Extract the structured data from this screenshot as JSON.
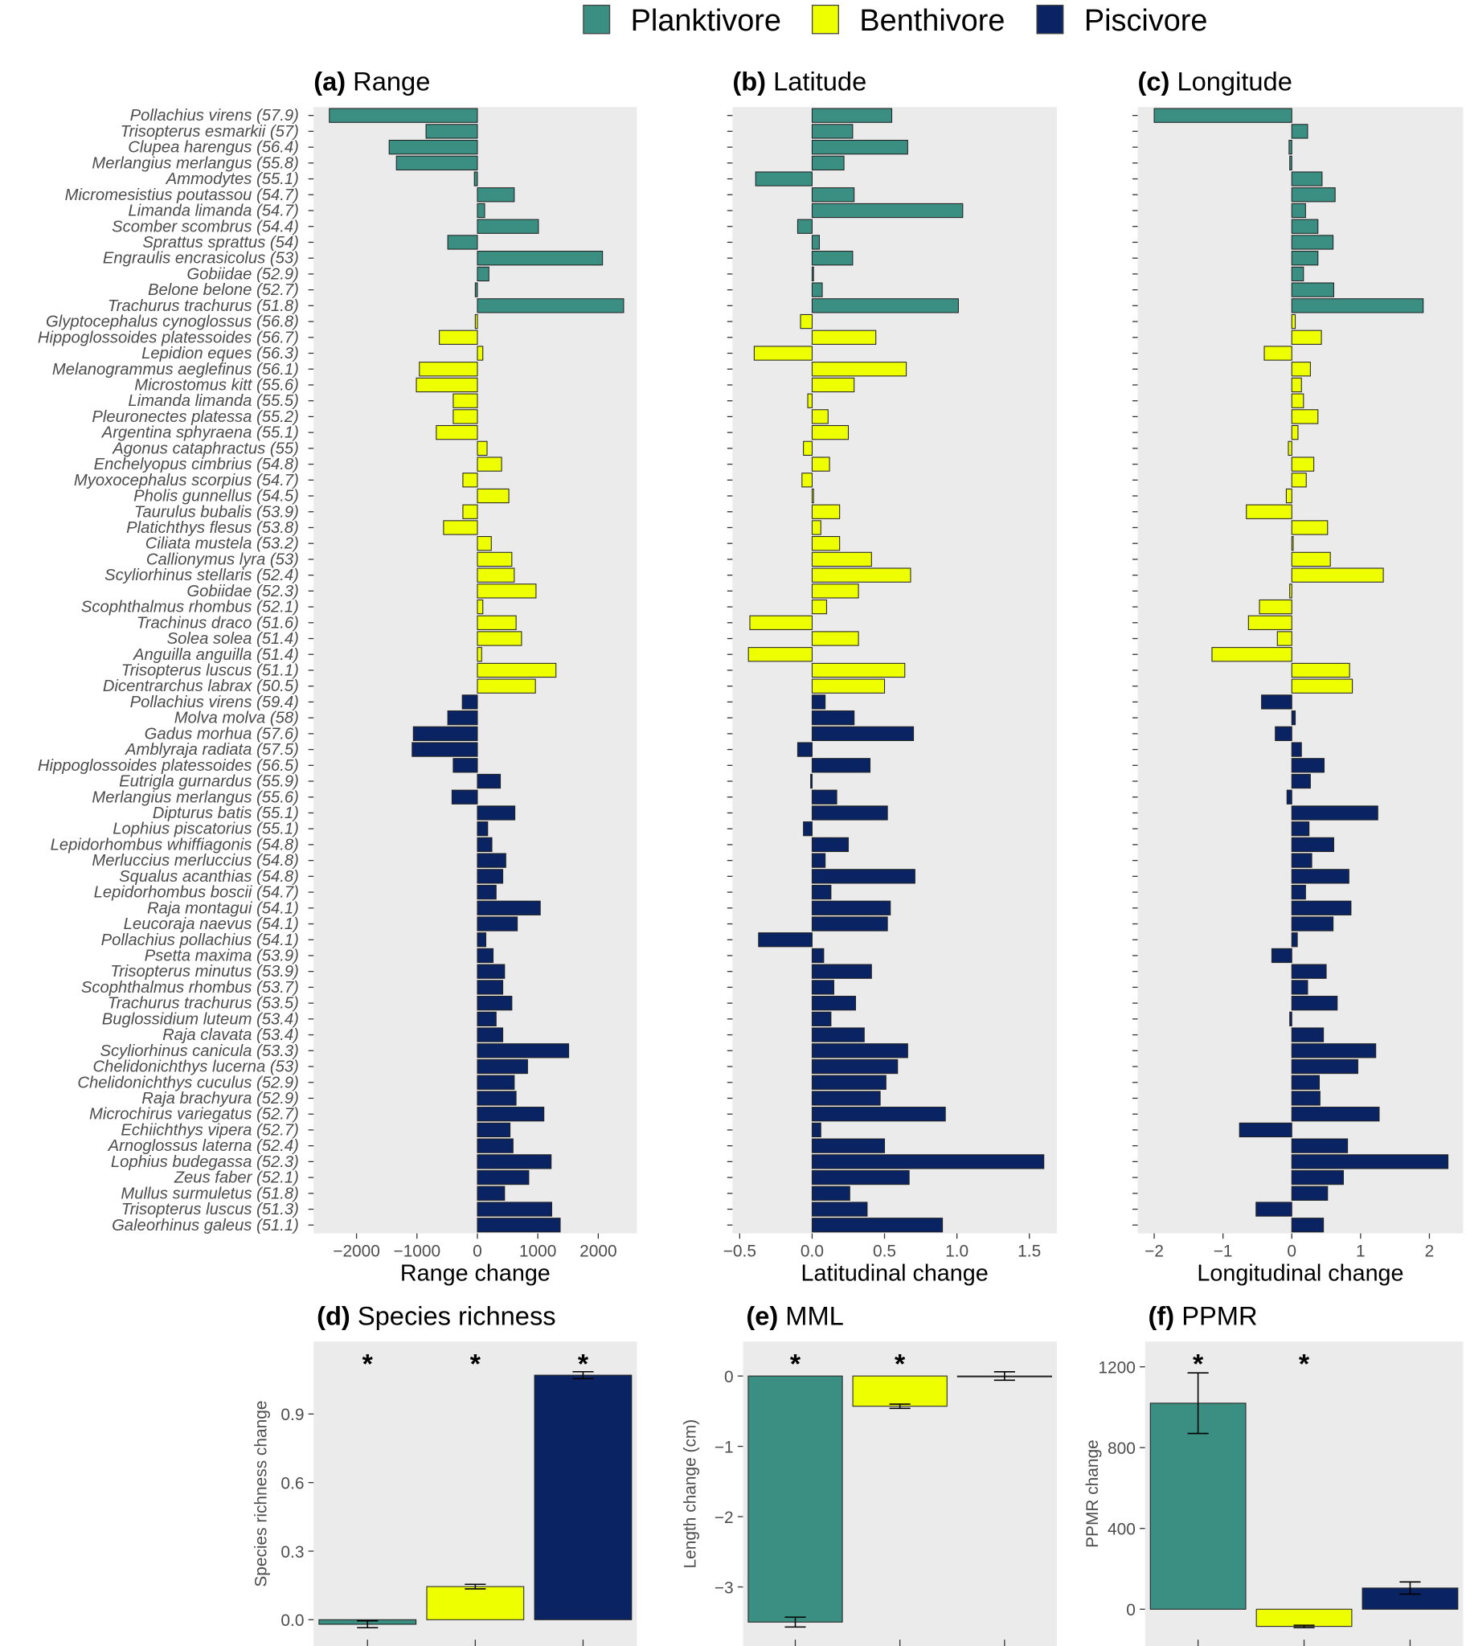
{
  "chart_data": {
    "type": "bar",
    "colors": {
      "Planktivore": "#3A8E82",
      "Benthivore": "#EEFF00",
      "Piscivore": "#0A2463",
      "panel_bg": "#EBEBEB"
    },
    "legend": {
      "position": "top",
      "entries": [
        "Planktivore",
        "Benthivore",
        "Piscivore"
      ]
    },
    "species": [
      [
        "Pollachius virens (57.9)",
        "Planktivore"
      ],
      [
        "Trisopterus esmarkii (57)",
        "Planktivore"
      ],
      [
        "Clupea harengus (56.4)",
        "Planktivore"
      ],
      [
        "Merlangius merlangus (55.8)",
        "Planktivore"
      ],
      [
        "Ammodytes (55.1)",
        "Planktivore"
      ],
      [
        "Micromesistius poutassou (54.7)",
        "Planktivore"
      ],
      [
        "Limanda limanda (54.7)",
        "Planktivore"
      ],
      [
        "Scomber scombrus (54.4)",
        "Planktivore"
      ],
      [
        "Sprattus sprattus (54)",
        "Planktivore"
      ],
      [
        "Engraulis encrasicolus (53)",
        "Planktivore"
      ],
      [
        "Gobiidae (52.9)",
        "Planktivore"
      ],
      [
        "Belone belone (52.7)",
        "Planktivore"
      ],
      [
        "Trachurus trachurus (51.8)",
        "Planktivore"
      ],
      [
        "Glyptocephalus cynoglossus (56.8)",
        "Benthivore"
      ],
      [
        "Hippoglossoides platessoides (56.7)",
        "Benthivore"
      ],
      [
        "Lepidion eques (56.3)",
        "Benthivore"
      ],
      [
        "Melanogrammus aeglefinus (56.1)",
        "Benthivore"
      ],
      [
        "Microstomus kitt (55.6)",
        "Benthivore"
      ],
      [
        "Limanda limanda (55.5)",
        "Benthivore"
      ],
      [
        "Pleuronectes platessa (55.2)",
        "Benthivore"
      ],
      [
        "Argentina sphyraena (55.1)",
        "Benthivore"
      ],
      [
        "Agonus cataphractus (55)",
        "Benthivore"
      ],
      [
        "Enchelyopus cimbrius (54.8)",
        "Benthivore"
      ],
      [
        "Myoxocephalus scorpius (54.7)",
        "Benthivore"
      ],
      [
        "Pholis gunnellus (54.5)",
        "Benthivore"
      ],
      [
        "Taurulus bubalis (53.9)",
        "Benthivore"
      ],
      [
        "Platichthys flesus (53.8)",
        "Benthivore"
      ],
      [
        "Ciliata mustela (53.2)",
        "Benthivore"
      ],
      [
        "Callionymus lyra (53)",
        "Benthivore"
      ],
      [
        "Scyliorhinus stellaris (52.4)",
        "Benthivore"
      ],
      [
        "Gobiidae (52.3)",
        "Benthivore"
      ],
      [
        "Scophthalmus rhombus (52.1)",
        "Benthivore"
      ],
      [
        "Trachinus draco (51.6)",
        "Benthivore"
      ],
      [
        "Solea solea (51.4)",
        "Benthivore"
      ],
      [
        "Anguilla anguilla (51.4)",
        "Benthivore"
      ],
      [
        "Trisopterus luscus (51.1)",
        "Benthivore"
      ],
      [
        "Dicentrarchus labrax (50.5)",
        "Benthivore"
      ],
      [
        "Pollachius virens (59.4)",
        "Piscivore"
      ],
      [
        "Molva molva (58)",
        "Piscivore"
      ],
      [
        "Gadus morhua (57.6)",
        "Piscivore"
      ],
      [
        "Amblyraja radiata (57.5)",
        "Piscivore"
      ],
      [
        "Hippoglossoides platessoides (56.5)",
        "Piscivore"
      ],
      [
        "Eutrigla gurnardus (55.9)",
        "Piscivore"
      ],
      [
        "Merlangius merlangus (55.6)",
        "Piscivore"
      ],
      [
        "Dipturus batis (55.1)",
        "Piscivore"
      ],
      [
        "Lophius piscatorius (55.1)",
        "Piscivore"
      ],
      [
        "Lepidorhombus whiffiagonis (54.8)",
        "Piscivore"
      ],
      [
        "Merluccius merluccius (54.8)",
        "Piscivore"
      ],
      [
        "Squalus acanthias (54.8)",
        "Piscivore"
      ],
      [
        "Lepidorhombus boscii (54.7)",
        "Piscivore"
      ],
      [
        "Raja montagui (54.1)",
        "Piscivore"
      ],
      [
        "Leucoraja naevus (54.1)",
        "Piscivore"
      ],
      [
        "Pollachius pollachius (54.1)",
        "Piscivore"
      ],
      [
        "Psetta maxima (53.9)",
        "Piscivore"
      ],
      [
        "Trisopterus minutus (53.9)",
        "Piscivore"
      ],
      [
        "Scophthalmus rhombus (53.7)",
        "Piscivore"
      ],
      [
        "Trachurus trachurus (53.5)",
        "Piscivore"
      ],
      [
        "Buglossidium luteum (53.4)",
        "Piscivore"
      ],
      [
        "Raja clavata (53.4)",
        "Piscivore"
      ],
      [
        "Scyliorhinus canicula (53.3)",
        "Piscivore"
      ],
      [
        "Chelidonichthys lucerna (53)",
        "Piscivore"
      ],
      [
        "Chelidonichthys cuculus (52.9)",
        "Piscivore"
      ],
      [
        "Raja brachyura (52.9)",
        "Piscivore"
      ],
      [
        "Microchirus variegatus (52.7)",
        "Piscivore"
      ],
      [
        "Echiichthys vipera (52.7)",
        "Piscivore"
      ],
      [
        "Arnoglossus laterna (52.4)",
        "Piscivore"
      ],
      [
        "Lophius budegassa (52.3)",
        "Piscivore"
      ],
      [
        "Zeus faber (52.1)",
        "Piscivore"
      ],
      [
        "Mullus surmuletus (51.8)",
        "Piscivore"
      ],
      [
        "Trisopterus luscus (51.3)",
        "Piscivore"
      ],
      [
        "Galeorhinus galeus (51.1)",
        "Piscivore"
      ]
    ],
    "panels": [
      {
        "tag": "(a)",
        "title": "Range",
        "xlabel": "Range change",
        "xlim": [
          -2710,
          2640
        ],
        "ticks": [
          -2000,
          -1000,
          0,
          1000,
          2000
        ],
        "tick_labels": [
          "-2000",
          "-1000",
          "0",
          "1000",
          "2000"
        ],
        "values": [
          -2450,
          -850,
          -1460,
          -1340,
          -50,
          610,
          120,
          1010,
          -490,
          2070,
          190,
          -35,
          2420,
          -35,
          -630,
          90,
          -960,
          -1010,
          -400,
          -400,
          -680,
          160,
          400,
          -240,
          520,
          -240,
          -560,
          230,
          570,
          610,
          970,
          90,
          640,
          730,
          70,
          1300,
          960,
          -250,
          -490,
          -1060,
          -1080,
          -400,
          380,
          -420,
          620,
          170,
          240,
          470,
          420,
          310,
          1040,
          660,
          140,
          260,
          450,
          420,
          570,
          310,
          420,
          1510,
          830,
          610,
          640,
          1100,
          540,
          590,
          1220,
          850,
          450,
          1230,
          1370
        ]
      },
      {
        "tag": "(b)",
        "title": "Latitude",
        "xlabel": "Latitudinal change",
        "xlim": [
          -0.55,
          1.69
        ],
        "ticks": [
          -0.5,
          0,
          0.5,
          1,
          1.5
        ],
        "tick_labels": [
          "-0.5",
          "0.0",
          "0.5",
          "1.0",
          "1.5"
        ],
        "values": [
          0.55,
          0.28,
          0.66,
          0.22,
          -0.39,
          0.29,
          1.04,
          -0.1,
          0.05,
          0.28,
          0.01,
          0.07,
          1.01,
          -0.08,
          0.44,
          -0.4,
          0.65,
          0.29,
          -0.03,
          0.11,
          0.25,
          -0.06,
          0.12,
          -0.07,
          0.01,
          0.19,
          0.06,
          0.19,
          0.41,
          0.68,
          0.32,
          0.1,
          -0.43,
          0.32,
          -0.44,
          0.64,
          0.5,
          0.09,
          0.29,
          0.7,
          -0.1,
          0.4,
          -0.01,
          0.17,
          0.52,
          -0.06,
          0.25,
          0.09,
          0.71,
          0.13,
          0.54,
          0.52,
          -0.37,
          0.08,
          0.41,
          0.15,
          0.3,
          0.13,
          0.36,
          0.66,
          0.59,
          0.51,
          0.47,
          0.92,
          0.06,
          0.5,
          1.6,
          0.67,
          0.26,
          0.38,
          0.9
        ]
      },
      {
        "tag": "(c)",
        "title": "Longitude",
        "xlabel": "Longitudinal change",
        "xlim": [
          -2.24,
          2.49
        ],
        "ticks": [
          -2,
          -1,
          0,
          1,
          2
        ],
        "tick_labels": [
          "-2",
          "-1",
          "0",
          "1",
          "2"
        ],
        "values": [
          -2.0,
          0.23,
          -0.04,
          -0.03,
          0.44,
          0.63,
          0.2,
          0.38,
          0.6,
          0.38,
          0.17,
          0.61,
          1.91,
          0.05,
          0.43,
          -0.4,
          0.27,
          0.14,
          0.17,
          0.38,
          0.09,
          -0.05,
          0.32,
          0.21,
          -0.08,
          -0.66,
          0.52,
          0.02,
          0.56,
          1.33,
          -0.03,
          -0.47,
          -0.63,
          -0.21,
          -1.16,
          0.84,
          0.88,
          -0.44,
          0.05,
          -0.24,
          0.14,
          0.47,
          0.27,
          -0.07,
          1.25,
          0.25,
          0.61,
          0.29,
          0.83,
          0.2,
          0.86,
          0.6,
          0.08,
          -0.29,
          0.5,
          0.23,
          0.66,
          -0.03,
          0.46,
          1.22,
          0.96,
          0.4,
          0.41,
          1.27,
          -0.76,
          0.81,
          2.27,
          0.75,
          0.52,
          -0.52,
          0.46
        ]
      }
    ],
    "summary": [
      {
        "tag": "(d)",
        "title": "Species richness",
        "ylabel": "Species richness change",
        "ylim": [
          -0.115,
          1.217
        ],
        "ticks": [
          0,
          0.3,
          0.6,
          0.9
        ],
        "tick_labels": [
          "0.0",
          "0.3",
          "0.6",
          "0.9"
        ],
        "values": [
          -0.02,
          0.145,
          1.07
        ],
        "errors": [
          0.015,
          0.01,
          0.015
        ],
        "significant": [
          true,
          true,
          true
        ],
        "marker": "*"
      },
      {
        "tag": "(e)",
        "title": "MML",
        "ylabel": "Length change (cm)",
        "ylim": [
          -3.84,
          0.49
        ],
        "ticks": [
          -3,
          -2,
          -1,
          0
        ],
        "tick_labels": [
          "-3",
          "-2",
          "-1",
          "0"
        ],
        "values": [
          -3.5,
          -0.43,
          0.0
        ],
        "errors": [
          0.07,
          0.03,
          0.06
        ],
        "significant": [
          true,
          true,
          false
        ],
        "marker": "*"
      },
      {
        "tag": "(f)",
        "title": "PPMR",
        "ylabel": "PPMR change",
        "ylim": [
          -182,
          1325
        ],
        "ticks": [
          0,
          400,
          800,
          1200
        ],
        "tick_labels": [
          "0",
          "400",
          "800",
          "1200"
        ],
        "values": [
          1020,
          -85,
          105
        ],
        "errors": [
          150,
          6,
          30
        ],
        "significant": [
          true,
          true,
          false
        ],
        "marker": "*"
      }
    ]
  }
}
